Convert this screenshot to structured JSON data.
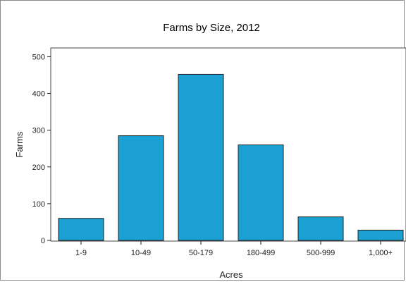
{
  "chart_data": {
    "type": "bar",
    "title": "Farms by Size, 2012",
    "xlabel": "Acres",
    "ylabel": "Farms",
    "categories": [
      "1-9",
      "10-49",
      "50-179",
      "180-499",
      "500-999",
      "1,000+"
    ],
    "values": [
      60,
      285,
      452,
      260,
      64,
      28
    ],
    "ylim": [
      0,
      520
    ],
    "yticks": [
      0,
      100,
      200,
      300,
      400,
      500
    ],
    "grid": false,
    "legend": "none",
    "bar_color": "#1aa0d3"
  }
}
